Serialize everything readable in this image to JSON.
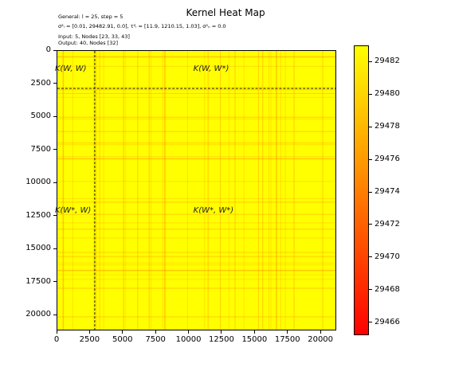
{
  "chart_data": {
    "type": "heatmap",
    "title": "Kernel Heat Map",
    "info_lines": [
      "General: l = 25, step = 5",
      "σ²ᵢ = [0.01, 29482.91, 0.0], τ²ᵢ = [11.9, 1210.15, 1.03], σ²ₙ = 0.0",
      "Input: 5, Nodes [23, 33, 43]",
      "Output: 40, Nodes [32]"
    ],
    "xlim": [
      0,
      21200
    ],
    "ylim": [
      21200,
      0
    ],
    "x_ticks": [
      "0",
      "2500",
      "5000",
      "7500",
      "10000",
      "12500",
      "15000",
      "17500",
      "20000"
    ],
    "y_ticks": [
      "0",
      "2500",
      "5000",
      "7500",
      "10000",
      "12500",
      "15000",
      "17500",
      "20000"
    ],
    "x_tick_values": [
      0,
      2500,
      5000,
      7500,
      10000,
      12500,
      15000,
      17500,
      20000
    ],
    "y_tick_values": [
      0,
      2500,
      5000,
      7500,
      10000,
      12500,
      15000,
      17500,
      20000
    ],
    "split_x": 2850,
    "split_y": 2850,
    "region_labels": [
      {
        "text": "K(W, W)",
        "x": 1500,
        "y": 1450
      },
      {
        "text": "K(W, W*)",
        "x": 12000,
        "y": 1450
      },
      {
        "text": "K(W*, W)",
        "x": 1500,
        "y": 12150
      },
      {
        "text": "K(W*, W*)",
        "x": 12000,
        "y": 12150
      }
    ],
    "colorbar": {
      "min": 29465.2,
      "max": 29483.0,
      "ticks": [
        "29466",
        "29468",
        "29470",
        "29472",
        "29474",
        "29476",
        "29478",
        "29480",
        "29482"
      ],
      "tick_values": [
        29466,
        29468,
        29470,
        29472,
        29474,
        29476,
        29478,
        29480,
        29482
      ],
      "colors": [
        "#ff0000",
        "#ff7f00",
        "#ffff00"
      ]
    },
    "band_positions": [
      400,
      1150,
      2750,
      2900,
      3200,
      3500,
      5000,
      5150,
      6100,
      6950,
      7100,
      8000,
      8150,
      9900,
      11200,
      11450,
      12400,
      13050,
      13500,
      14200,
      15300,
      15600,
      16100,
      16250,
      16650,
      17000,
      17350,
      18000,
      20200
    ]
  }
}
